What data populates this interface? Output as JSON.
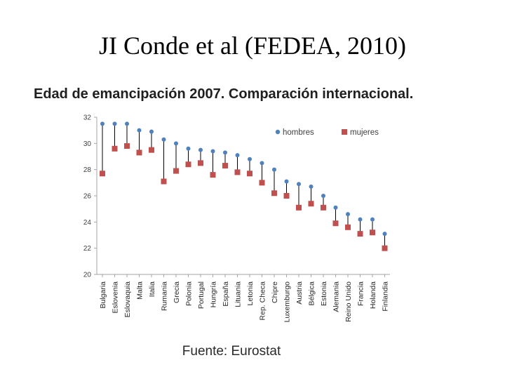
{
  "slide": {
    "title": "JI Conde et al (FEDEA, 2010)"
  },
  "colors": {
    "hombres": "#4f81bd",
    "mujeres": "#c0504d",
    "axis": "#a6a6a6",
    "stem": "#000000"
  },
  "source_label": "Fuente: Eurostat",
  "chart_data": {
    "type": "scatter",
    "title": "Edad de emancipación 2007. Comparación internacional.",
    "xlabel": "",
    "ylabel": "",
    "ylim": [
      20,
      32
    ],
    "yticks": [
      20,
      22,
      24,
      26,
      28,
      30,
      32
    ],
    "grid": false,
    "legend_position": "top-right",
    "categories": [
      "Bulgaria",
      "Eslovenia",
      "Eslovaquia",
      "Malta",
      "Italia",
      "Rumania",
      "Grecia",
      "Polonia",
      "Portugal",
      "Hungría",
      "España",
      "Lituania",
      "Letonia",
      "Rep. Checa",
      "Chipre",
      "Luxemburgo",
      "Austria",
      "Bélgica",
      "Estonia",
      "Alemania",
      "Reino Unido",
      "Francia",
      "Holanda",
      "Finlandia"
    ],
    "series": [
      {
        "name": "hombres",
        "marker": "circle",
        "values": [
          31.5,
          31.5,
          31.5,
          31.0,
          30.9,
          30.3,
          30.0,
          29.6,
          29.5,
          29.4,
          29.3,
          29.1,
          28.8,
          28.5,
          28.0,
          27.1,
          26.9,
          26.7,
          26.0,
          25.1,
          24.6,
          24.2,
          24.2,
          23.1
        ]
      },
      {
        "name": "mujeres",
        "marker": "square",
        "values": [
          27.7,
          29.6,
          29.8,
          29.3,
          29.5,
          27.1,
          27.9,
          28.4,
          28.5,
          27.6,
          28.3,
          27.8,
          27.7,
          27.0,
          26.2,
          26.0,
          25.1,
          25.4,
          25.1,
          23.9,
          23.6,
          23.1,
          23.2,
          22.0
        ]
      }
    ]
  }
}
